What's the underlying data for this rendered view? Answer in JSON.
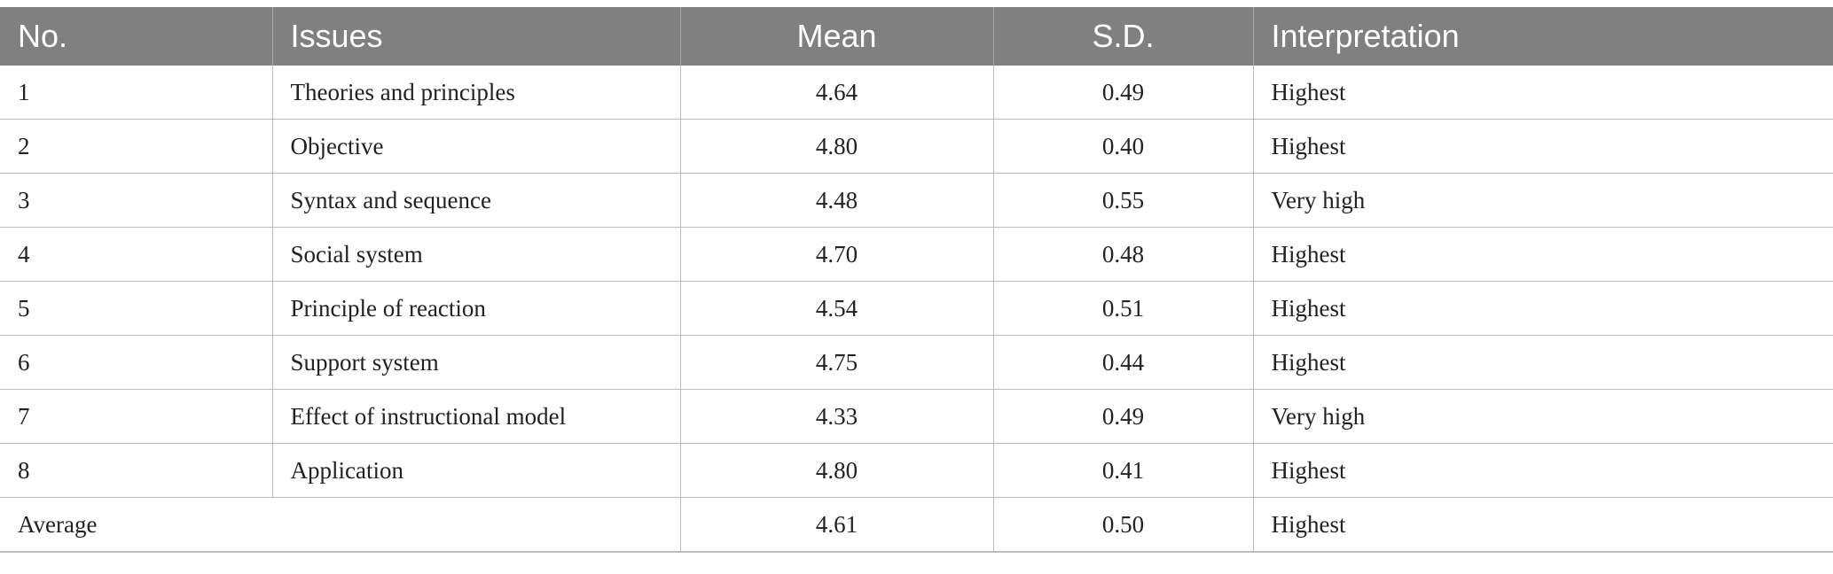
{
  "table": {
    "headers": {
      "no": "No.",
      "issues": "Issues",
      "mean": "Mean",
      "sd": "S.D.",
      "interpretation": "Interpretation"
    },
    "rows": [
      {
        "no": "1",
        "issue": "Theories and principles",
        "mean": "4.64",
        "sd": "0.49",
        "interpretation": "Highest"
      },
      {
        "no": "2",
        "issue": "Objective",
        "mean": "4.80",
        "sd": "0.40",
        "interpretation": "Highest"
      },
      {
        "no": "3",
        "issue": "Syntax and sequence",
        "mean": "4.48",
        "sd": "0.55",
        "interpretation": "Very high"
      },
      {
        "no": "4",
        "issue": "Social system",
        "mean": "4.70",
        "sd": "0.48",
        "interpretation": "Highest"
      },
      {
        "no": "5",
        "issue": "Principle of reaction",
        "mean": "4.54",
        "sd": "0.51",
        "interpretation": "Highest"
      },
      {
        "no": "6",
        "issue": "Support system",
        "mean": "4.75",
        "sd": "0.44",
        "interpretation": "Highest"
      },
      {
        "no": "7",
        "issue": "Effect of instructional model",
        "mean": "4.33",
        "sd": "0.49",
        "interpretation": "Very high"
      },
      {
        "no": "8",
        "issue": "Application",
        "mean": "4.80",
        "sd": "0.41",
        "interpretation": "Highest"
      }
    ],
    "average": {
      "label": "Average",
      "mean": "4.61",
      "sd": "0.50",
      "interpretation": "Highest"
    }
  }
}
